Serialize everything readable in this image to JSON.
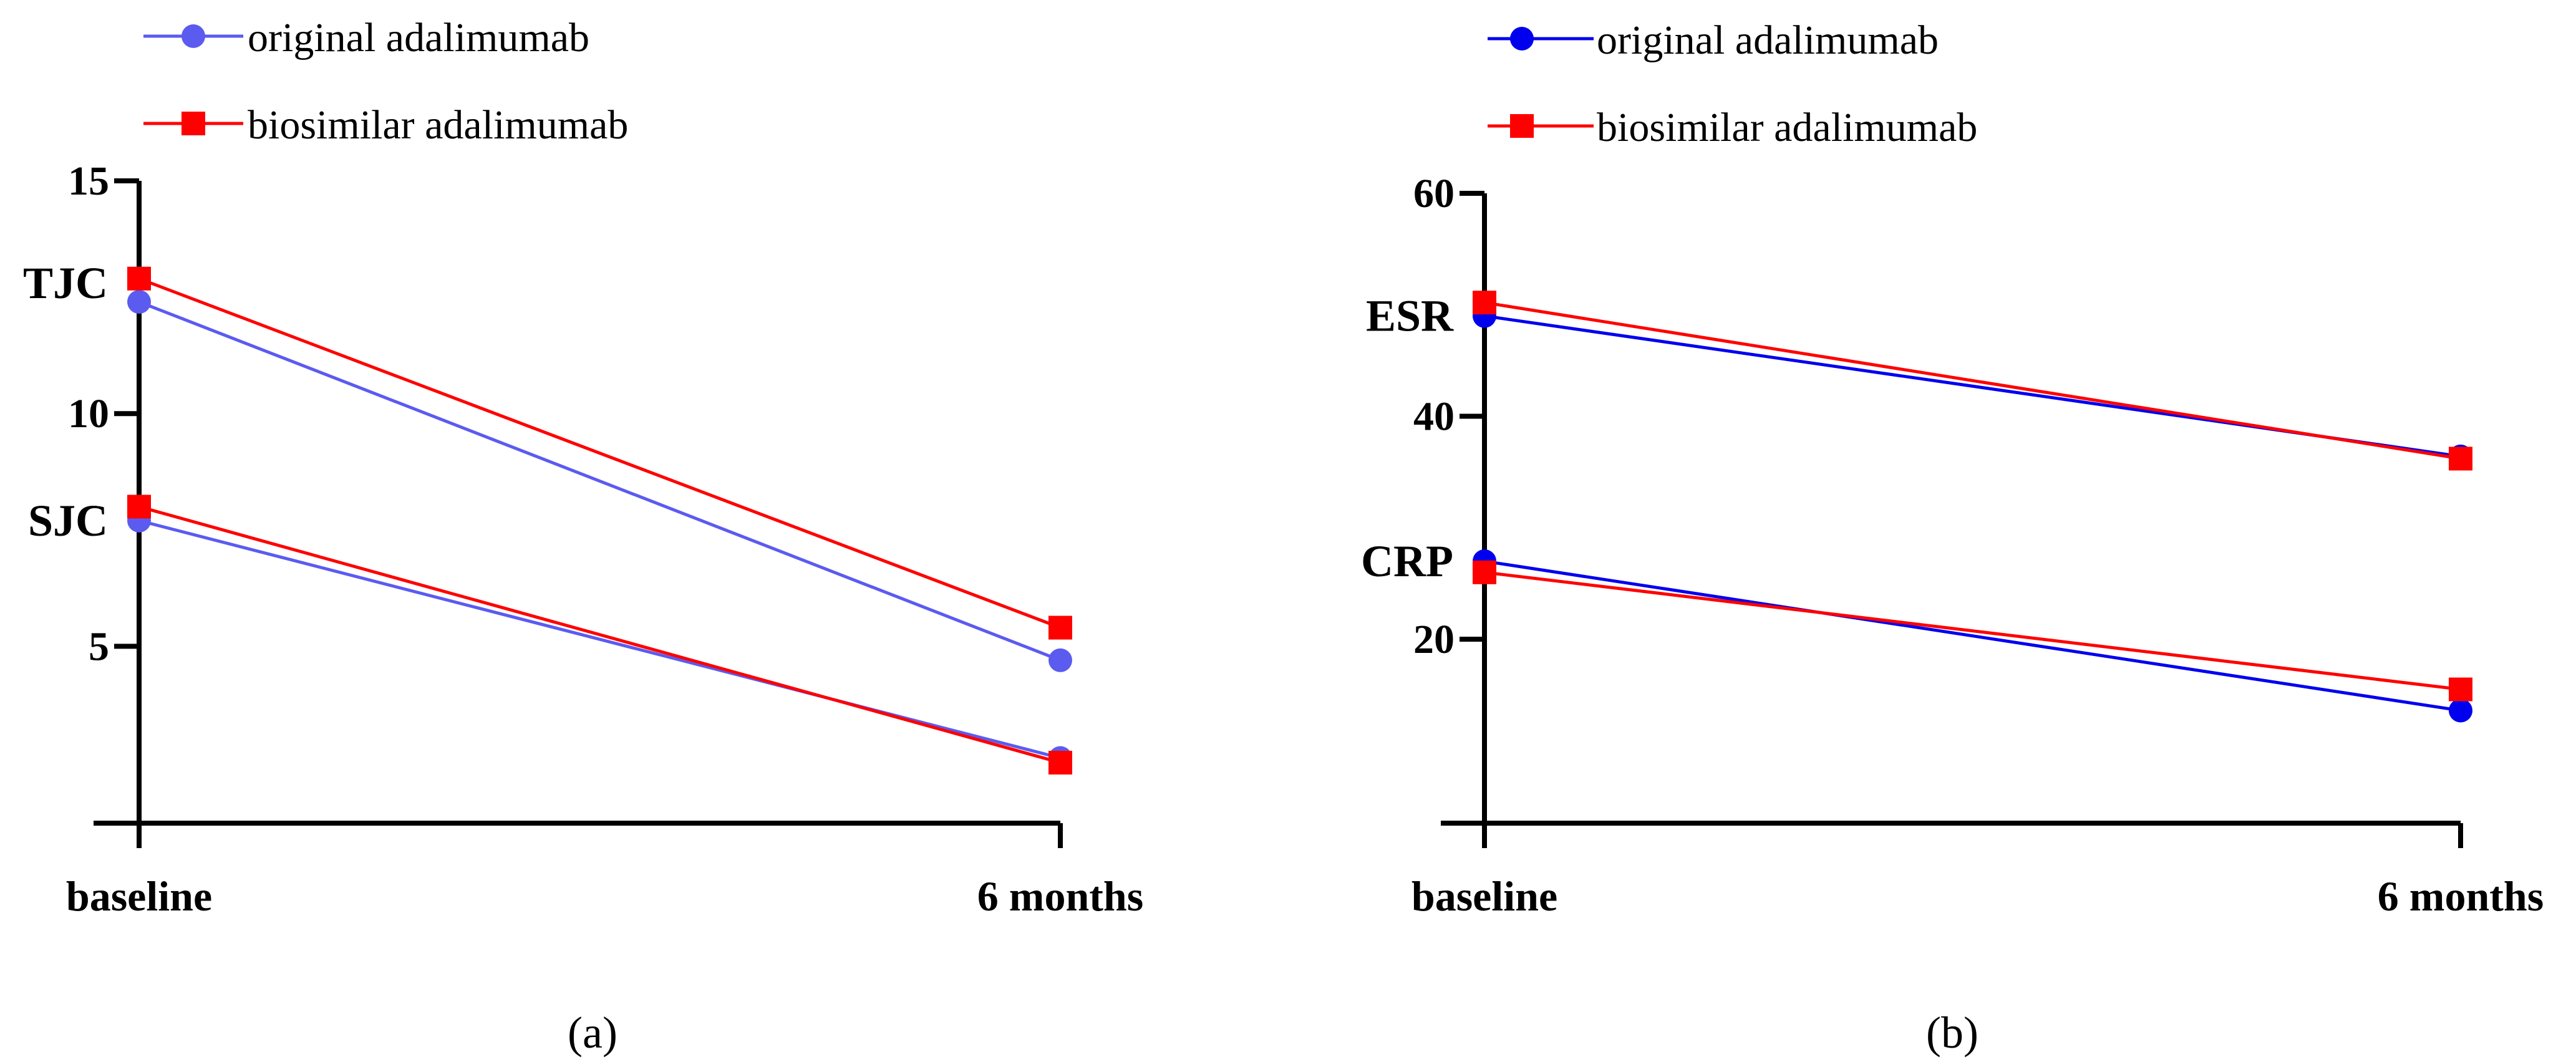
{
  "chart_data": [
    {
      "type": "line",
      "panel_label": "(a)",
      "categories": [
        "baseline",
        "6 months"
      ],
      "yticks": [
        5,
        10,
        15
      ],
      "ylim": [
        1.2,
        15
      ],
      "legend": [
        {
          "name": "original adalimumab",
          "color": "#5b5bf0",
          "marker": "circle"
        },
        {
          "name": "biosimilar adalimumab",
          "color": "#ff0000",
          "marker": "square"
        }
      ],
      "groups": [
        {
          "label": "TJC",
          "label_value": 12.8,
          "series": [
            {
              "name": "original adalimumab",
              "values": [
                12.4,
                4.7
              ]
            },
            {
              "name": "biosimilar adalimumab",
              "values": [
                12.9,
                5.4
              ]
            }
          ]
        },
        {
          "label": "SJC",
          "label_value": 7.7,
          "series": [
            {
              "name": "original adalimumab",
              "values": [
                7.7,
                2.6
              ]
            },
            {
              "name": "biosimilar adalimumab",
              "values": [
                8.0,
                2.5
              ]
            }
          ]
        }
      ]
    },
    {
      "type": "line",
      "panel_label": "(b)",
      "categories": [
        "baseline",
        "6 months"
      ],
      "yticks": [
        20,
        40,
        60
      ],
      "ylim": [
        3.5,
        60
      ],
      "legend": [
        {
          "name": "original adalimumab",
          "color": "#0000ee",
          "marker": "circle"
        },
        {
          "name": "biosimilar adalimumab",
          "color": "#ff0000",
          "marker": "square"
        }
      ],
      "groups": [
        {
          "label": "ESR",
          "label_value": 49,
          "series": [
            {
              "name": "original adalimumab",
              "values": [
                49.0,
                36.4
              ]
            },
            {
              "name": "biosimilar adalimumab",
              "values": [
                50.2,
                36.2
              ]
            }
          ]
        },
        {
          "label": "CRP",
          "label_value": 27,
          "series": [
            {
              "name": "original adalimumab",
              "values": [
                27.0,
                13.6
              ]
            },
            {
              "name": "biosimilar adalimumab",
              "values": [
                26.0,
                15.5
              ]
            }
          ]
        }
      ]
    }
  ]
}
